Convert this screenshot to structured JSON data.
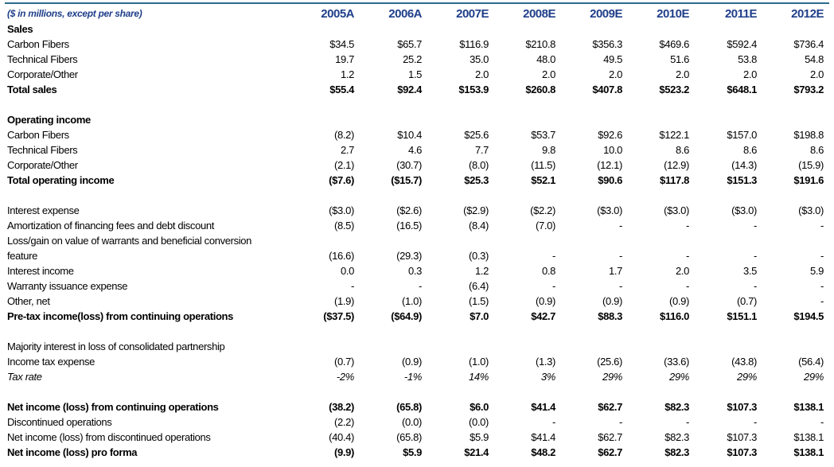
{
  "header": {
    "label": "($ in millions, except per share)",
    "years": [
      "2005A",
      "2006A",
      "2007E",
      "2008E",
      "2009E",
      "2010E",
      "2011E",
      "2012E"
    ]
  },
  "rows": [
    {
      "label": "Sales",
      "style": "section",
      "values": []
    },
    {
      "label": "Carbon Fibers",
      "style": "",
      "values": [
        "$34.5",
        "$65.7",
        "$116.9",
        "$210.8",
        "$356.3",
        "$469.6",
        "$592.4",
        "$736.4"
      ]
    },
    {
      "label": "Technical Fibers",
      "style": "",
      "values": [
        "19.7",
        "25.2",
        "35.0",
        "48.0",
        "49.5",
        "51.6",
        "53.8",
        "54.8"
      ]
    },
    {
      "label": "Corporate/Other",
      "style": "",
      "values": [
        "1.2",
        "1.5",
        "2.0",
        "2.0",
        "2.0",
        "2.0",
        "2.0",
        "2.0"
      ]
    },
    {
      "label": "Total sales",
      "style": "bold",
      "values": [
        "$55.4",
        "$92.4",
        "$153.9",
        "$260.8",
        "$407.8",
        "$523.2",
        "$648.1",
        "$793.2"
      ]
    },
    {
      "label": "",
      "style": "",
      "values": []
    },
    {
      "label": "Operating income",
      "style": "section",
      "values": []
    },
    {
      "label": "Carbon Fibers",
      "style": "",
      "values": [
        "(8.2)",
        "$10.4",
        "$25.6",
        "$53.7",
        "$92.6",
        "$122.1",
        "$157.0",
        "$198.8"
      ]
    },
    {
      "label": "Technical Fibers",
      "style": "",
      "values": [
        "2.7",
        "4.6",
        "7.7",
        "9.8",
        "10.0",
        "8.6",
        "8.6",
        "8.6"
      ]
    },
    {
      "label": "Corporate/Other",
      "style": "",
      "values": [
        "(2.1)",
        "(30.7)",
        "(8.0)",
        "(11.5)",
        "(12.1)",
        "(12.9)",
        "(14.3)",
        "(15.9)"
      ]
    },
    {
      "label": "Total operating income",
      "style": "bold",
      "values": [
        "($7.6)",
        "($15.7)",
        "$25.3",
        "$52.1",
        "$90.6",
        "$117.8",
        "$151.3",
        "$191.6"
      ]
    },
    {
      "label": "",
      "style": "",
      "values": []
    },
    {
      "label": "Interest expense",
      "style": "",
      "values": [
        "($3.0)",
        "($2.6)",
        "($2.9)",
        "($2.2)",
        "($3.0)",
        "($3.0)",
        "($3.0)",
        "($3.0)"
      ]
    },
    {
      "label": "Amortization of financing fees and debt discount",
      "style": "",
      "values": [
        "(8.5)",
        "(16.5)",
        "(8.4)",
        "(7.0)",
        "-",
        "-",
        "-",
        "-"
      ]
    },
    {
      "label": "Loss/gain on value of warrants and beneficial conversion",
      "style": "",
      "values": []
    },
    {
      "label": "feature",
      "style": "",
      "values": [
        "(16.6)",
        "(29.3)",
        "(0.3)",
        "-",
        "-",
        "-",
        "-",
        "-"
      ]
    },
    {
      "label": "Interest income",
      "style": "",
      "values": [
        "0.0",
        "0.3",
        "1.2",
        "0.8",
        "1.7",
        "2.0",
        "3.5",
        "5.9"
      ]
    },
    {
      "label": "Warranty issuance expense",
      "style": "",
      "values": [
        "-",
        "-",
        "(6.4)",
        "-",
        "-",
        "-",
        "-",
        "-"
      ]
    },
    {
      "label": "Other, net",
      "style": "",
      "values": [
        "(1.9)",
        "(1.0)",
        "(1.5)",
        "(0.9)",
        "(0.9)",
        "(0.9)",
        "(0.7)",
        "-"
      ]
    },
    {
      "label": "Pre-tax income(loss) from continuing operations",
      "style": "bold",
      "values": [
        "($37.5)",
        "($64.9)",
        "$7.0",
        "$42.7",
        "$88.3",
        "$116.0",
        "$151.1",
        "$194.5"
      ]
    },
    {
      "label": "",
      "style": "",
      "values": []
    },
    {
      "label": "Majority interest in loss of consolidated partnership",
      "style": "",
      "values": []
    },
    {
      "label": "Income tax expense",
      "style": "",
      "values": [
        "(0.7)",
        "(0.9)",
        "(1.0)",
        "(1.3)",
        "(25.6)",
        "(33.6)",
        "(43.8)",
        "(56.4)"
      ]
    },
    {
      "label": "Tax rate",
      "style": "italic",
      "values": [
        "-2%",
        "-1%",
        "14%",
        "3%",
        "29%",
        "29%",
        "29%",
        "29%"
      ]
    },
    {
      "label": "",
      "style": "",
      "values": []
    },
    {
      "label": "Net income (loss) from continuing operations",
      "style": "bold",
      "values": [
        "(38.2)",
        "(65.8)",
        "$6.0",
        "$41.4",
        "$62.7",
        "$82.3",
        "$107.3",
        "$138.1"
      ]
    },
    {
      "label": "Discontinued operations",
      "style": "",
      "values": [
        "(2.2)",
        "(0.0)",
        "(0.0)",
        "-",
        "-",
        "-",
        "-",
        "-"
      ]
    },
    {
      "label": "Net income (loss) from discontinued operations",
      "style": "",
      "values": [
        "(40.4)",
        "(65.8)",
        "$5.9",
        "$41.4",
        "$62.7",
        "$82.3",
        "$107.3",
        "$138.1"
      ]
    },
    {
      "label": "Net income (loss) pro forma",
      "style": "bold",
      "values": [
        "(9.9)",
        "$5.9",
        "$21.4",
        "$48.2",
        "$62.7",
        "$82.3",
        "$107.3",
        "$138.1"
      ]
    }
  ]
}
